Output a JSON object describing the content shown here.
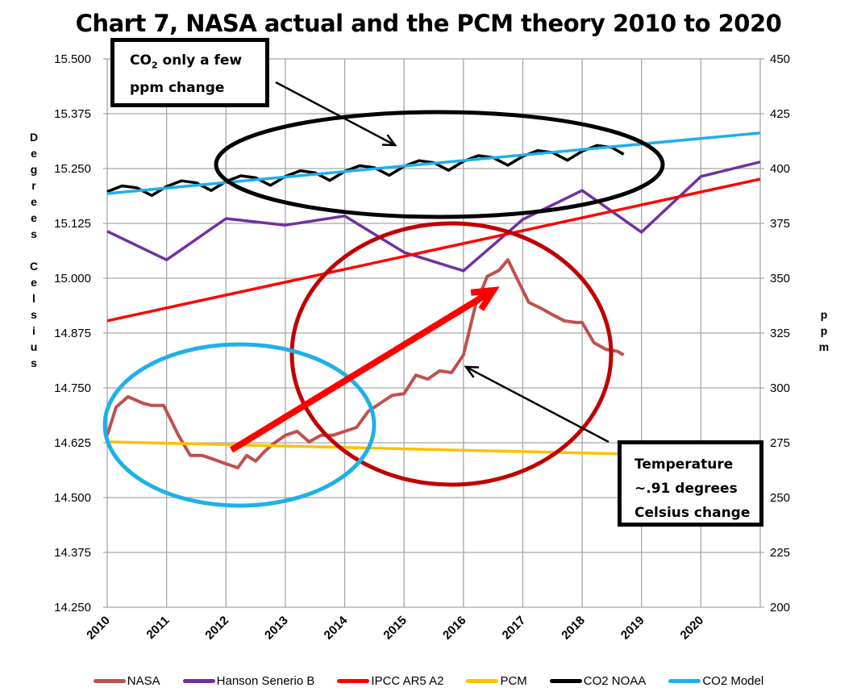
{
  "chart_data": {
    "type": "line",
    "title": "Chart 7, NASA actual and the PCM theory 2010 to 2020",
    "ylabel_left": "Degrees Celsius",
    "ylabel_right": "ppm",
    "xlim": [
      2010,
      2021
    ],
    "ylim_left": [
      14.25,
      15.5
    ],
    "ylim_right": [
      200,
      450
    ],
    "x_ticks": [
      "2010",
      "2011",
      "2012",
      "2013",
      "2014",
      "2015",
      "2016",
      "2017",
      "2018",
      "2019",
      "2020"
    ],
    "y_ticks_left": [
      "15.500",
      "15.375",
      "15.250",
      "15.125",
      "15.000",
      "14.875",
      "14.750",
      "14.625",
      "14.500",
      "14.375",
      "14.250"
    ],
    "y_ticks_right": [
      "450",
      "425",
      "400",
      "375",
      "350",
      "325",
      "300",
      "275",
      "250",
      "225",
      "200"
    ],
    "grid": true,
    "legend_position": "bottom",
    "series": [
      {
        "name": "NASA",
        "axis": "left",
        "color": "#c0504d",
        "x": [
          2010.0,
          2010.15,
          2010.35,
          2010.6,
          2010.75,
          2010.95,
          2011.2,
          2011.4,
          2011.6,
          2011.8,
          2012.0,
          2012.2,
          2012.35,
          2012.5,
          2012.65,
          2012.8,
          2013.0,
          2013.2,
          2013.4,
          2013.6,
          2013.8,
          2014.0,
          2014.2,
          2014.4,
          2014.6,
          2014.8,
          2015.0,
          2015.2,
          2015.4,
          2015.6,
          2015.8,
          2016.0,
          2016.2,
          2016.4,
          2016.6,
          2016.75,
          2016.9,
          2017.1,
          2017.3,
          2017.5,
          2017.7,
          2017.9,
          2018.0,
          2018.2,
          2018.4,
          2018.6,
          2018.7
        ],
        "y": [
          14.642,
          14.706,
          14.73,
          14.715,
          14.71,
          14.71,
          14.642,
          14.596,
          14.596,
          14.587,
          14.577,
          14.568,
          14.596,
          14.583,
          14.605,
          14.623,
          14.642,
          14.651,
          14.627,
          14.642,
          14.642,
          14.651,
          14.66,
          14.697,
          14.715,
          14.733,
          14.737,
          14.779,
          14.77,
          14.789,
          14.785,
          14.825,
          14.936,
          15.004,
          15.018,
          15.042,
          15.0,
          14.945,
          14.932,
          14.917,
          14.903,
          14.899,
          14.899,
          14.853,
          14.838,
          14.833,
          14.825
        ]
      },
      {
        "name": "Hanson Senerio B",
        "axis": "left",
        "color": "#7030a0",
        "x": [
          2010,
          2011,
          2012,
          2013,
          2014,
          2015,
          2016,
          2017,
          2018,
          2019,
          2020,
          2021
        ],
        "y": [
          15.107,
          15.042,
          15.136,
          15.121,
          15.142,
          15.059,
          15.017,
          15.134,
          15.2,
          15.105,
          15.232,
          15.265
        ]
      },
      {
        "name": "IPCC AR5 A2",
        "axis": "left",
        "color": "#ff0000",
        "x": [
          2010,
          2021
        ],
        "y": [
          14.903,
          15.226
        ]
      },
      {
        "name": "PCM",
        "axis": "left",
        "color": "#ffc000",
        "x": [
          2010,
          2018.8
        ],
        "y": [
          14.627,
          14.599
        ]
      },
      {
        "name": "CO2 NOAA",
        "axis": "right",
        "color": "#000000",
        "x": [
          2010,
          2010.25,
          2010.5,
          2010.75,
          2011,
          2011.25,
          2011.5,
          2011.75,
          2012,
          2012.25,
          2012.5,
          2012.75,
          2013,
          2013.25,
          2013.5,
          2013.75,
          2014,
          2014.25,
          2014.5,
          2014.75,
          2015,
          2015.25,
          2015.5,
          2015.75,
          2016,
          2016.25,
          2016.5,
          2016.75,
          2017,
          2017.25,
          2017.5,
          2017.75,
          2018,
          2018.25,
          2018.5,
          2018.7
        ],
        "y": [
          389.5,
          392.1,
          391.2,
          387.7,
          391.8,
          394.4,
          393.5,
          390.0,
          394.1,
          396.7,
          395.8,
          392.3,
          396.4,
          399.0,
          398.1,
          394.6,
          398.7,
          401.3,
          400.4,
          396.9,
          401.0,
          403.6,
          402.7,
          399.2,
          403.3,
          405.9,
          405.0,
          401.5,
          405.6,
          408.2,
          407.3,
          403.8,
          407.9,
          410.5,
          409.6,
          406.5
        ]
      },
      {
        "name": "CO2 Model",
        "axis": "right",
        "color": "#1fb0e8",
        "x": [
          2010,
          2021
        ],
        "y": [
          388.6,
          416.2
        ]
      }
    ]
  },
  "annotations": {
    "co2_box": {
      "prefix": "CO",
      "sub": "2",
      "rest": " only a few",
      "line2": "ppm change"
    },
    "temp_box": {
      "line1": "Temperature",
      "line2": "~.91 degrees",
      "line3": "Celsius change"
    },
    "colors": {
      "co2_ellipse": "#000000",
      "temp_ellipse": "#c00000",
      "early_ellipse": "#1fb0e8",
      "trend_arrow": "#ff0000"
    }
  }
}
